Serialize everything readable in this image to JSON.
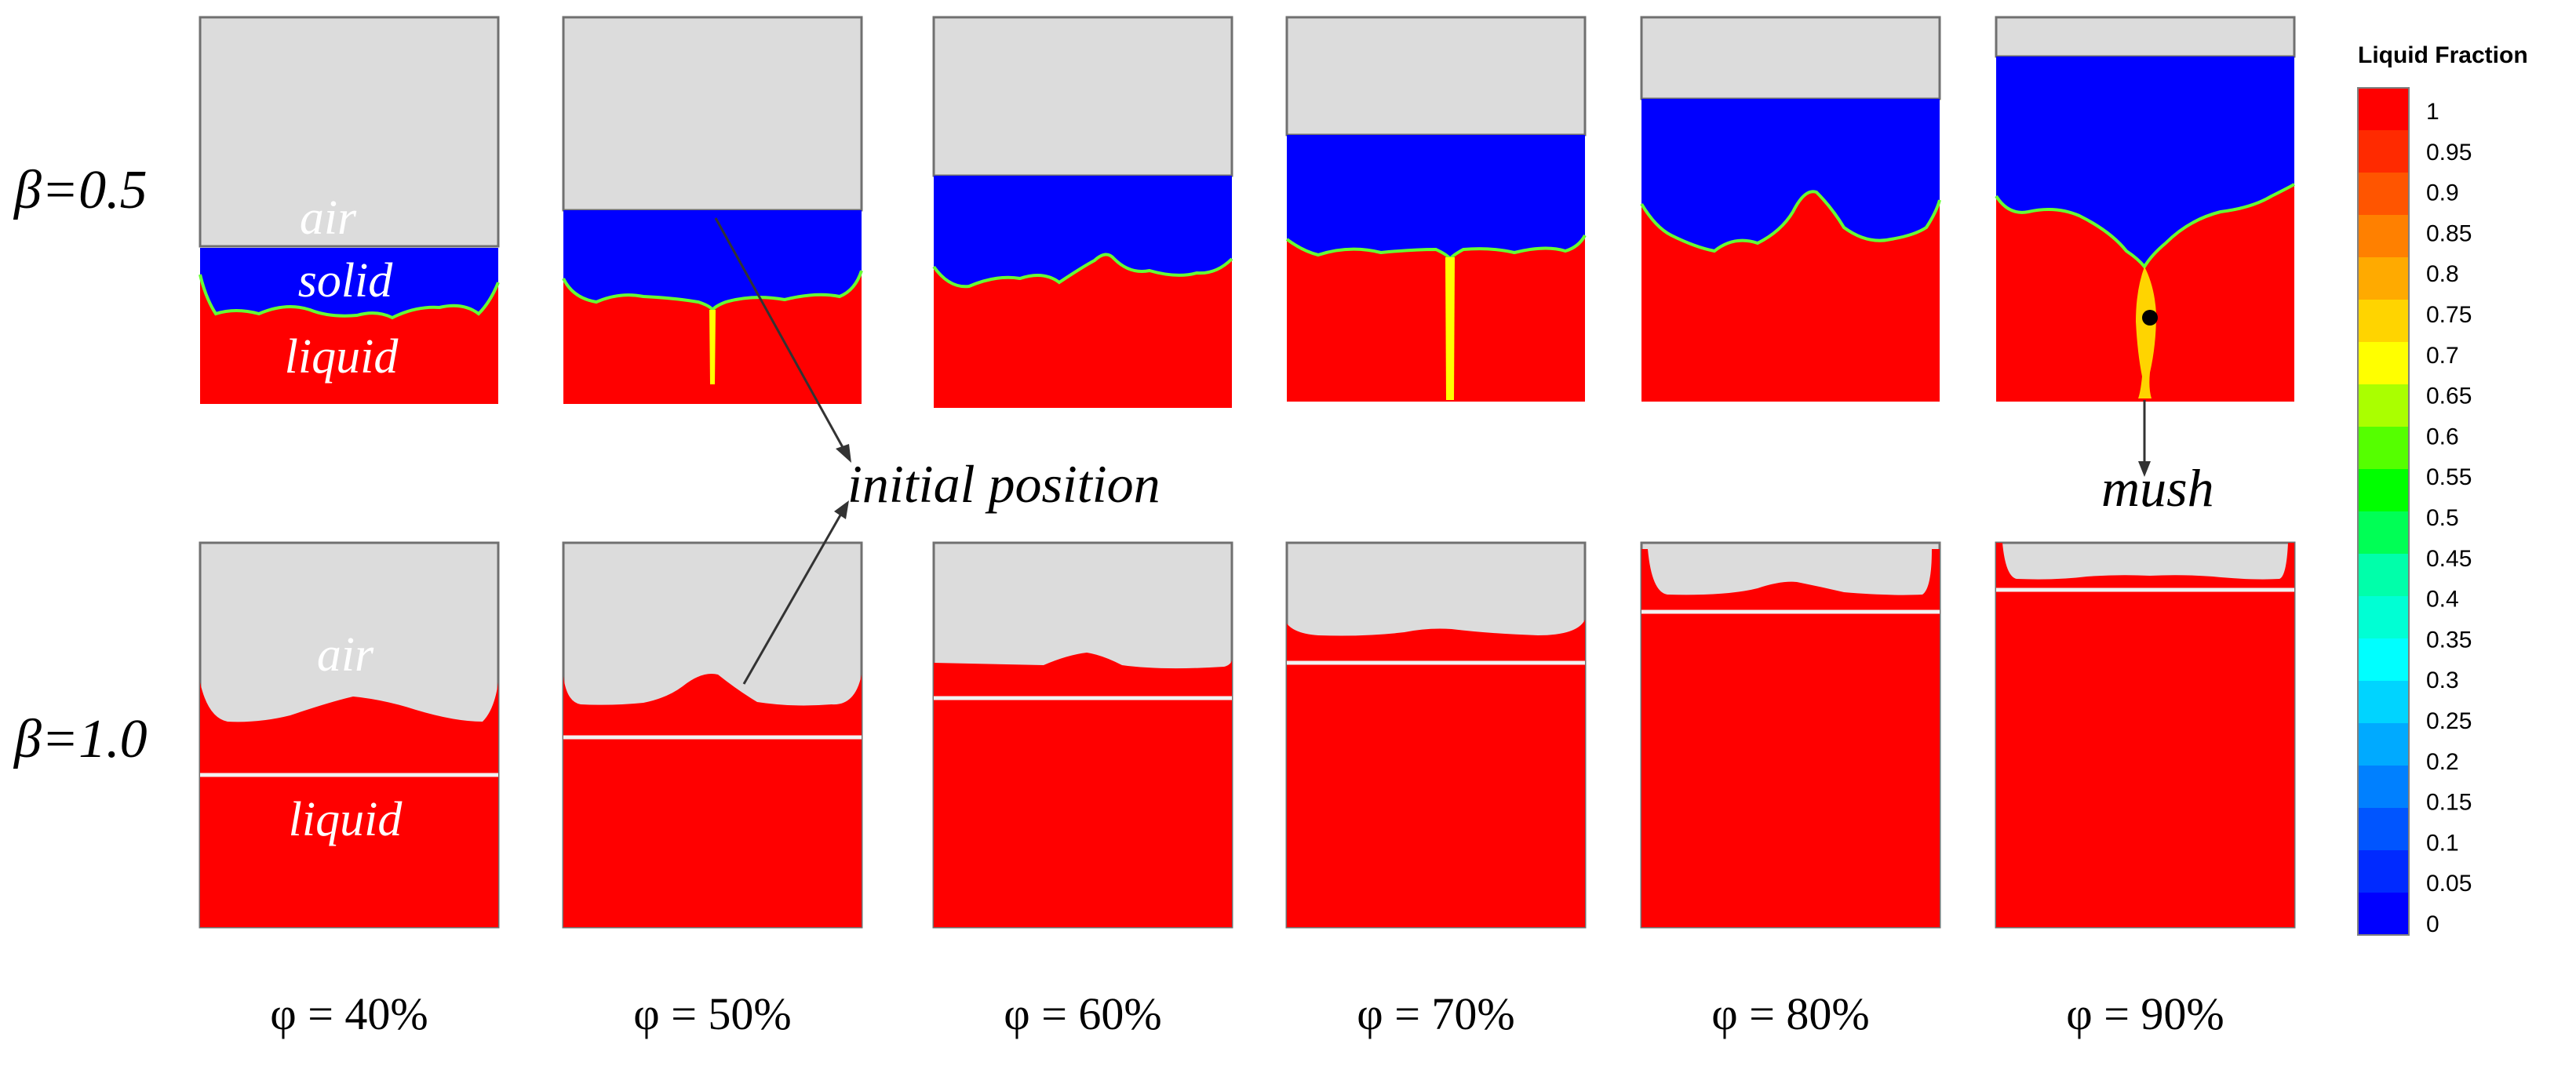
{
  "rows": [
    {
      "beta_label": "β=0.5",
      "region_labels": [
        "air",
        "solid",
        "liquid"
      ]
    },
    {
      "beta_label": "β=1.0",
      "region_labels": [
        "air",
        "liquid"
      ]
    }
  ],
  "columns": [
    {
      "phi_label": "φ = 40%"
    },
    {
      "phi_label": "φ = 50%"
    },
    {
      "phi_label": "φ = 60%"
    },
    {
      "phi_label": "φ = 70%"
    },
    {
      "phi_label": "φ = 80%"
    },
    {
      "phi_label": "φ = 90%"
    }
  ],
  "annotations": {
    "initial_position": "initial position",
    "mush": "mush"
  },
  "colorbar": {
    "title": "Liquid Fraction",
    "ticks": [
      "1",
      "0.95",
      "0.9",
      "0.85",
      "0.8",
      "0.75",
      "0.7",
      "0.65",
      "0.6",
      "0.55",
      "0.5",
      "0.45",
      "0.4",
      "0.35",
      "0.3",
      "0.25",
      "0.2",
      "0.15",
      "0.1",
      "0.05",
      "0"
    ],
    "colors": [
      "#ff0000",
      "#ff2a00",
      "#ff5500",
      "#ff8000",
      "#ffaa00",
      "#ffd400",
      "#ffff00",
      "#aaff00",
      "#55ff00",
      "#00ff00",
      "#00ff55",
      "#00ffaa",
      "#00ffd4",
      "#00ffff",
      "#00d4ff",
      "#00aaff",
      "#0080ff",
      "#0055ff",
      "#002aff",
      "#0000ff"
    ]
  },
  "colors": {
    "air": "#dcdcdc",
    "solid": "#0000ff",
    "liquid": "#ff0000",
    "mush": "#ffff00",
    "interface_line": "#f2f2f2"
  }
}
